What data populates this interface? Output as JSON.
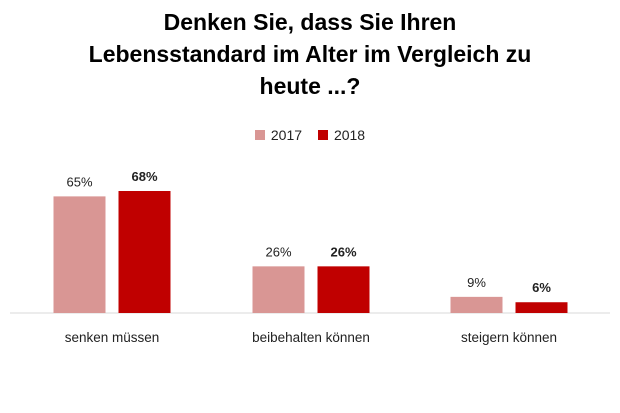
{
  "chart_data": {
    "type": "bar",
    "title_lines": [
      "Denken Sie, dass Sie Ihren",
      "Lebensstandard im Alter im Vergleich zu",
      "heute ...?"
    ],
    "categories": [
      "senken müssen",
      "beibehalten können",
      "steigern können"
    ],
    "series": [
      {
        "name": "2017",
        "values": [
          65,
          26,
          9
        ],
        "labels": [
          "65%",
          "26%",
          "9%"
        ],
        "color": "#d99694"
      },
      {
        "name": "2018",
        "values": [
          68,
          26,
          6
        ],
        "labels": [
          "68%",
          "26%",
          "6%"
        ],
        "color": "#c00000"
      }
    ],
    "ylim": [
      0,
      100
    ],
    "legend_position": "top-center",
    "grid": false
  }
}
